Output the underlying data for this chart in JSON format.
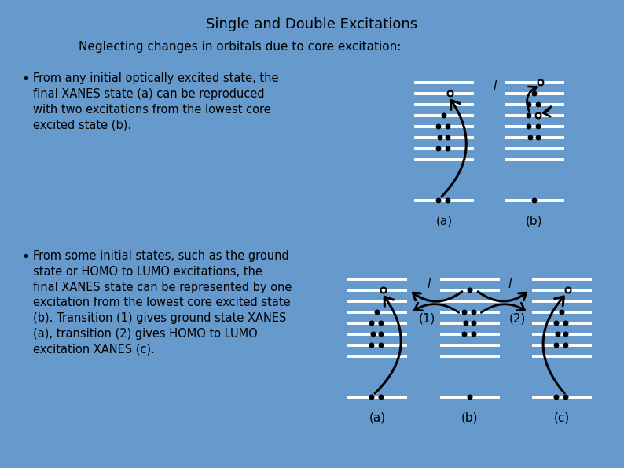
{
  "background_color": "#6699CC",
  "title": "Single and Double Excitations",
  "subtitle": "Neglecting changes in orbitals due to core excitation:",
  "title_fontsize": 13,
  "subtitle_fontsize": 11,
  "text_color": "black",
  "line_color": "white",
  "dot_color": "black",
  "bullet1": "From any initial optically excited state, the\nfinal XANES state (a) can be reproduced\nwith two excitations from the lowest core\nexcited state (b).",
  "bullet2": "From some initial states, such as the ground\nstate or HOMO to LUMO excitations, the\nfinal XANES state can be represented by one\nexcitation from the lowest core excited state\n(b). Transition (1) gives ground state XANES\n(a), transition (2) gives HOMO to LUMO\nexcitation XANES (c).",
  "label_a_top": "(a)",
  "label_b_top": "(b)",
  "label_a_bot": "(a)",
  "label_b_bot": "(b)",
  "label_c_bot": "(c)",
  "label_1": "(1)",
  "label_2": "(2)",
  "label_l": "l"
}
